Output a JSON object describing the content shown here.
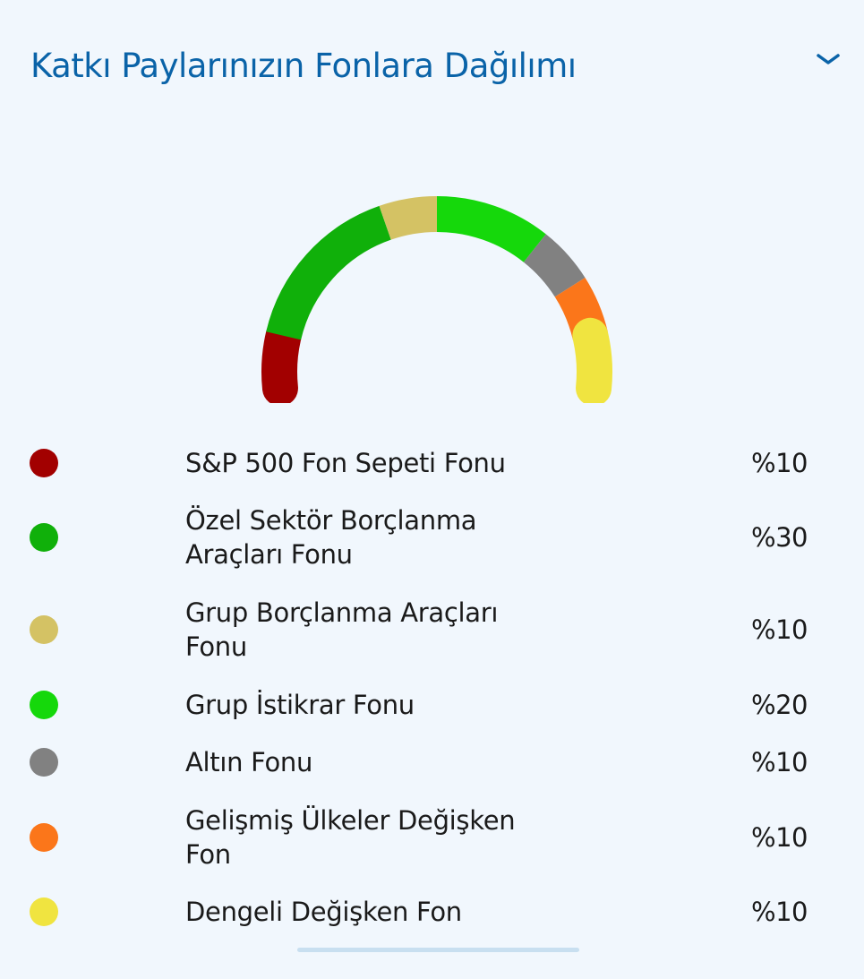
{
  "header": {
    "title": "Katkı Paylarınızın Fonlara Dağılımı",
    "toggle_icon": "chevron-down-icon"
  },
  "chart_data": {
    "type": "pie",
    "variant": "semi-donut",
    "categories": [
      "S&P 500 Fon Sepeti Fonu",
      "Özel Sektör Borçlanma Araçları Fonu",
      "Grup Borçlanma Araçları Fonu",
      "Grup İstikrar Fonu",
      "Altın Fonu",
      "Gelişmiş Ülkeler Değişken Fon",
      "Dengeli Değişken Fon"
    ],
    "values": [
      10,
      30,
      10,
      20,
      10,
      10,
      10
    ],
    "colors": [
      "#a20000",
      "#10b00a",
      "#d4c264",
      "#15d80b",
      "#818181",
      "#fb761a",
      "#f0e440"
    ],
    "labels": [
      "%10",
      "%30",
      "%10",
      "%20",
      "%10",
      "%10",
      "%10"
    ]
  }
}
